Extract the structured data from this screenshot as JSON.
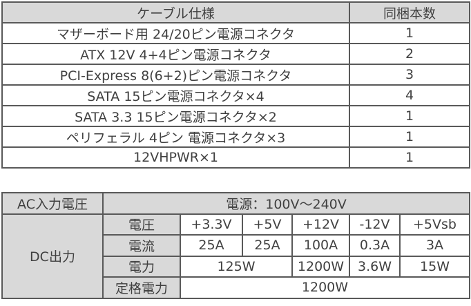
{
  "cable_table": {
    "header": [
      "ケーブル仕様",
      "同梱本数"
    ],
    "rows": [
      [
        "マザーボード用 24/20ピン電源コネクタ",
        1
      ],
      [
        "ATX 12V 4+4ピン電源コネクタ",
        2
      ],
      [
        "PCI-Express 8(6+2)ピン電源コネクタ",
        3
      ],
      [
        "SATA 15ピン電源コネクタ×4",
        4
      ],
      [
        "SATA 3.3 15ピン電源コネクタ×2",
        1
      ],
      [
        "ペリフェラル 4ピン 電源コネクタ×3",
        1
      ],
      [
        "12VHPWR×1",
        1
      ]
    ]
  },
  "power_table": {
    "ac": {
      "label": "AC入力電圧",
      "value": "電源：100V～240V"
    },
    "dc": {
      "label": "DC出力",
      "rows": [
        {
          "label": "電圧",
          "cells": [
            "+3.3V",
            "+5V",
            "+12V",
            "-12V",
            "+5Vsb"
          ]
        },
        {
          "label": "電流",
          "cells": [
            "25A",
            "25A",
            "100A",
            "0.3A",
            "3A"
          ]
        },
        {
          "label": "電力",
          "cells": [
            "125W",
            "1200W",
            "3.6W",
            "15W"
          ]
        }
      ]
    },
    "rated": {
      "label": "定格電力",
      "value": "1200W"
    }
  }
}
